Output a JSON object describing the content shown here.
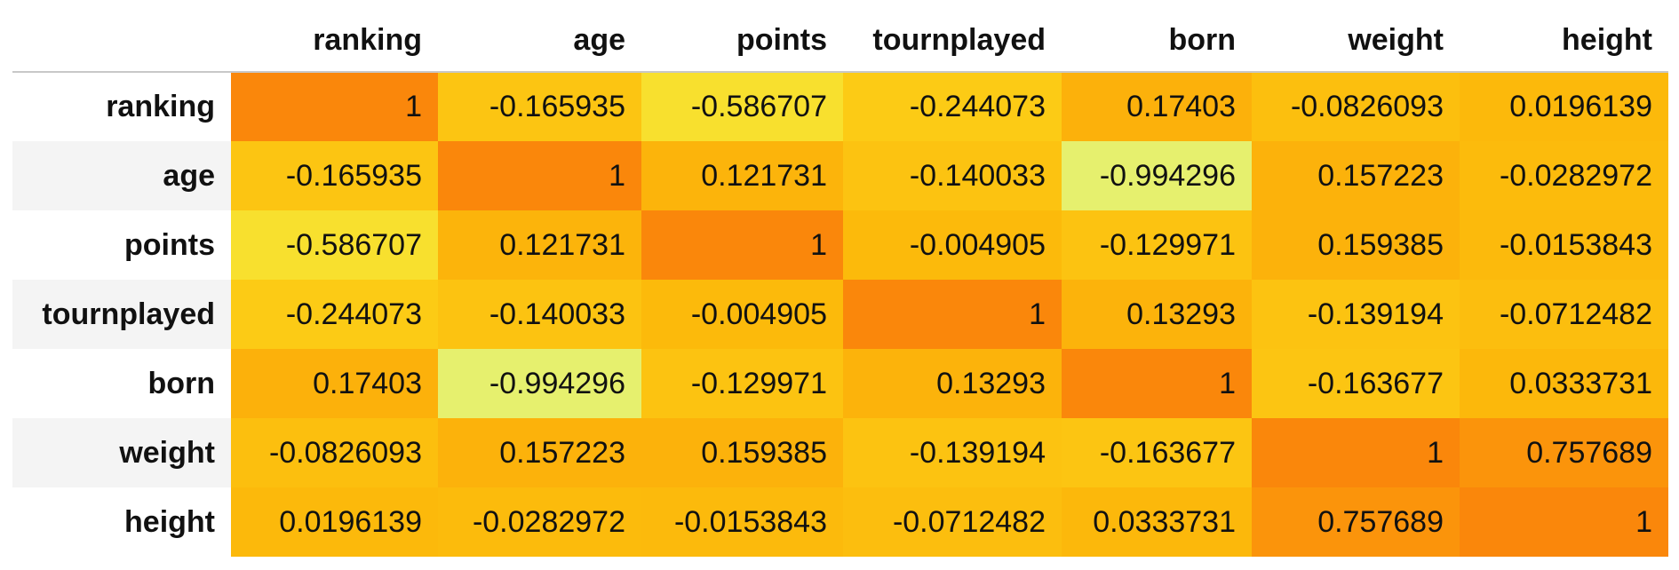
{
  "chart_data": {
    "type": "heatmap",
    "columns": [
      "ranking",
      "age",
      "points",
      "tournplayed",
      "born",
      "weight",
      "height"
    ],
    "rows": [
      "ranking",
      "age",
      "points",
      "tournplayed",
      "born",
      "weight",
      "height"
    ],
    "values": [
      [
        "1",
        "-0.165935",
        "-0.586707",
        "-0.244073",
        "0.17403",
        "-0.0826093",
        "0.0196139"
      ],
      [
        "-0.165935",
        "1",
        "0.121731",
        "-0.140033",
        "-0.994296",
        "0.157223",
        "-0.0282972"
      ],
      [
        "-0.586707",
        "0.121731",
        "1",
        "-0.004905",
        "-0.129971",
        "0.159385",
        "-0.0153843"
      ],
      [
        "-0.244073",
        "-0.140033",
        "-0.004905",
        "1",
        "0.13293",
        "-0.139194",
        "-0.0712482"
      ],
      [
        "0.17403",
        "-0.994296",
        "-0.129971",
        "0.13293",
        "1",
        "-0.163677",
        "0.0333731"
      ],
      [
        "-0.0826093",
        "0.157223",
        "0.159385",
        "-0.139194",
        "-0.163677",
        "1",
        "0.757689"
      ],
      [
        "0.0196139",
        "-0.0282972",
        "-0.0153843",
        "-0.0712482",
        "0.0333731",
        "0.757689",
        "1"
      ]
    ],
    "colormap": "Wistia",
    "color_low": "#e4ff7a",
    "color_high": "#fc7f00",
    "vmin": -1,
    "vmax": 1
  }
}
